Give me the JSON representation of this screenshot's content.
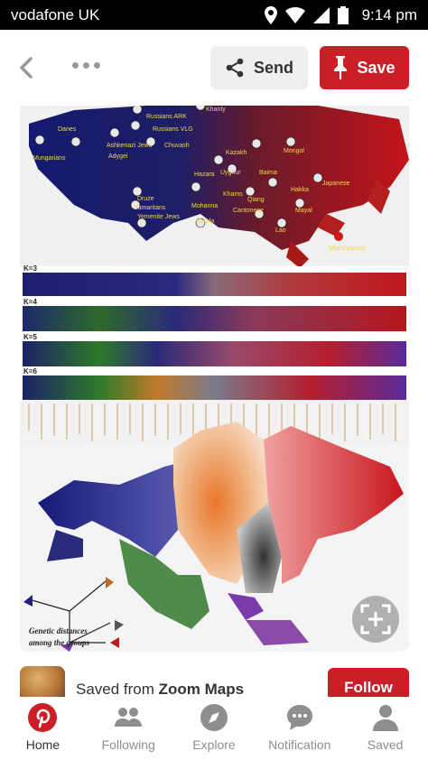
{
  "status_bar": {
    "carrier": "vodafone UK",
    "time": "9:14 pm",
    "icons": [
      "location-icon",
      "wifi-icon",
      "signal-icon",
      "battery-icon"
    ]
  },
  "toolbar": {
    "send_label": "Send",
    "save_label": "Save",
    "icons": [
      "back-arrow-icon",
      "more-options-icon",
      "share-icon",
      "pin-icon"
    ]
  },
  "pin": {
    "image": {
      "k_labels": [
        "K=3",
        "K=4",
        "K=5",
        "K=6"
      ],
      "map_labels": [
        "Danes",
        "Mungarians",
        "Ashkenazi Jews",
        "Adygei",
        "Russians ARK",
        "Russians VLG",
        "Chuvash",
        "Khanty",
        "Kazakh",
        "Mongol",
        "Uyghur",
        "Hazara",
        "Druze",
        "Samaritans",
        "Yemenite Jews",
        "Mohanna",
        "Kerala",
        "Khams",
        "Baima",
        "Hakka",
        "Qiang",
        "Cantonese",
        "Japanese",
        "Mayal",
        "Lao",
        "Micronesians"
      ],
      "caption_line1": "Genetic distances",
      "caption_line2": "among the groups"
    }
  },
  "source": {
    "prefix": "Saved from ",
    "name": "Zoom Maps",
    "follow_label": "Follow"
  },
  "bottom_nav": {
    "items": [
      {
        "label": "Home",
        "icon": "pinterest-logo-icon",
        "active": true
      },
      {
        "label": "Following",
        "icon": "people-icon",
        "active": false
      },
      {
        "label": "Explore",
        "icon": "compass-icon",
        "active": false
      },
      {
        "label": "Notification",
        "icon": "speech-bubble-icon",
        "active": false
      },
      {
        "label": "Saved",
        "icon": "person-icon",
        "active": false
      }
    ]
  },
  "colors": {
    "brand_red": "#cb1f27",
    "status_bar_bg": "#000000"
  }
}
